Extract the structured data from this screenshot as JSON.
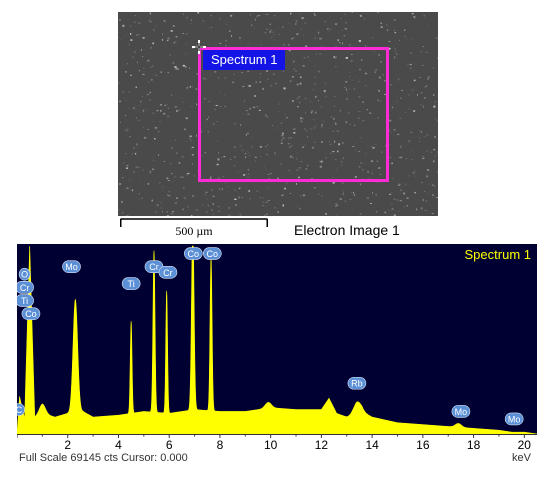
{
  "electron_image": {
    "roi_label": "Spectrum 1",
    "scale_label": "500 µm",
    "caption": "Electron Image 1",
    "icon": "crosshair-icon"
  },
  "spectrum": {
    "title": "Spectrum 1",
    "status_left": "Full Scale 69145 cts Cursor: 0.000",
    "unit": "keV",
    "colors": {
      "background": "#000033",
      "fill": "#ffff00",
      "badge": "#5b8fd6"
    }
  },
  "chart_data": {
    "type": "area",
    "title": "Spectrum 1",
    "xlabel": "keV",
    "xlim": [
      0,
      20.5
    ],
    "ylim": [
      0,
      100
    ],
    "ylabel_units": "percent of full scale",
    "x_ticks": [
      2,
      4,
      6,
      8,
      10,
      12,
      14,
      16,
      18,
      20
    ],
    "baseline": [
      [
        0,
        0
      ],
      [
        0.1,
        20
      ],
      [
        0.3,
        8
      ],
      [
        0.5,
        100
      ],
      [
        0.7,
        9
      ],
      [
        1.0,
        11
      ],
      [
        1.5,
        9
      ],
      [
        2.0,
        11
      ],
      [
        2.6,
        12
      ],
      [
        3.0,
        9
      ],
      [
        4.0,
        10
      ],
      [
        5.0,
        12
      ],
      [
        6.0,
        11
      ],
      [
        7.0,
        13
      ],
      [
        8.0,
        12
      ],
      [
        9.0,
        12
      ],
      [
        10.0,
        14
      ],
      [
        11.0,
        13
      ],
      [
        12.0,
        13
      ],
      [
        12.3,
        19
      ],
      [
        12.6,
        11
      ],
      [
        13.0,
        9
      ],
      [
        13.3,
        9
      ],
      [
        13.6,
        12
      ],
      [
        14.0,
        9
      ],
      [
        15.0,
        6
      ],
      [
        16.0,
        5
      ],
      [
        17.0,
        4
      ],
      [
        18.0,
        3
      ],
      [
        19.0,
        2
      ],
      [
        19.5,
        1
      ],
      [
        20.0,
        1
      ],
      [
        20.5,
        0
      ]
    ],
    "peaks": [
      {
        "keV": 2.3,
        "height": 60,
        "width": 0.09
      },
      {
        "keV": 4.5,
        "height": 49,
        "width": 0.035
      },
      {
        "keV": 5.4,
        "height": 86,
        "width": 0.04
      },
      {
        "keV": 5.9,
        "height": 65,
        "width": 0.035
      },
      {
        "keV": 6.93,
        "height": 100,
        "width": 0.05
      },
      {
        "keV": 7.65,
        "height": 82,
        "width": 0.04
      },
      {
        "keV": 1.0,
        "height": 5,
        "width": 0.12
      },
      {
        "keV": 9.9,
        "height": 3,
        "width": 0.12
      },
      {
        "keV": 13.4,
        "height": 7,
        "width": 0.15
      },
      {
        "keV": 17.4,
        "height": 2,
        "width": 0.12
      }
    ],
    "element_labels": [
      {
        "text": "O",
        "keV": 0.3,
        "y": 85
      },
      {
        "text": "Cr",
        "keV": 0.3,
        "y": 78
      },
      {
        "text": "Ti",
        "keV": 0.3,
        "y": 71
      },
      {
        "text": "Co",
        "keV": 0.55,
        "y": 64
      },
      {
        "text": "C",
        "keV": 0.08,
        "y": 13
      },
      {
        "text": "Mo",
        "keV": 2.15,
        "y": 89
      },
      {
        "text": "Ti",
        "keV": 4.5,
        "y": 80
      },
      {
        "text": "Cr",
        "keV": 5.4,
        "y": 89
      },
      {
        "text": "Cr",
        "keV": 5.95,
        "y": 86
      },
      {
        "text": "Co",
        "keV": 6.95,
        "y": 96
      },
      {
        "text": "Co",
        "keV": 7.7,
        "y": 96
      },
      {
        "text": "Rb",
        "keV": 13.4,
        "y": 27
      },
      {
        "text": "Mo",
        "keV": 17.5,
        "y": 12
      },
      {
        "text": "Mo",
        "keV": 19.6,
        "y": 8
      }
    ]
  }
}
